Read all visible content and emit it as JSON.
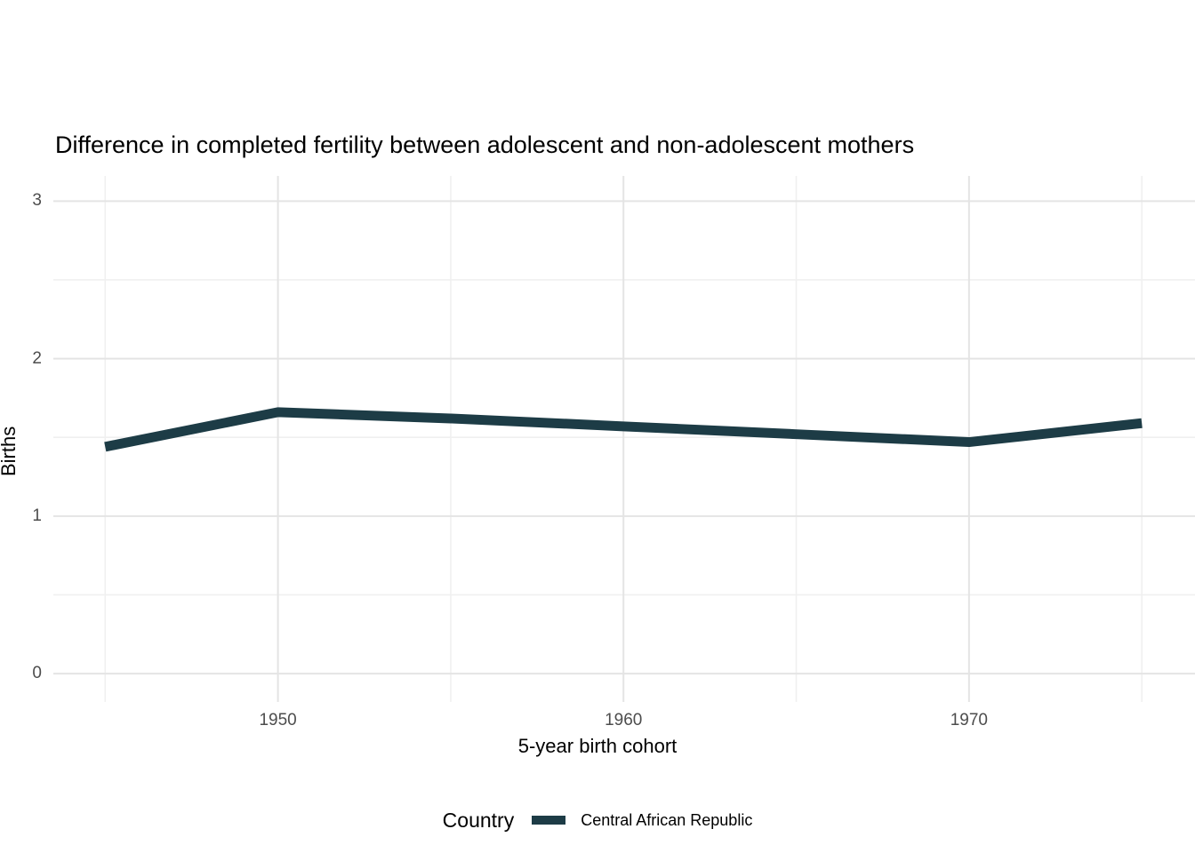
{
  "title": "Difference in completed fertility between adolescent and non-adolescent mothers",
  "chart_data": {
    "type": "line",
    "title": "Difference in completed fertility between adolescent and non-adolescent mothers",
    "xlabel": "5-year birth cohort",
    "ylabel": "Births",
    "x": [
      1945,
      1950,
      1955,
      1960,
      1965,
      1970,
      1975
    ],
    "series": [
      {
        "name": "Central African Republic",
        "color": "#1d3c46",
        "values": [
          1.44,
          1.66,
          1.62,
          1.57,
          1.52,
          1.47,
          1.59
        ]
      }
    ],
    "xlim": [
      1943.5,
      1976.54
    ],
    "ylim": [
      -0.18,
      3.16
    ],
    "x_ticks": [
      {
        "value": 1950,
        "label": "1950"
      },
      {
        "value": 1960,
        "label": "1960"
      },
      {
        "value": 1970,
        "label": "1970"
      }
    ],
    "y_ticks": [
      {
        "value": 0,
        "label": "0"
      },
      {
        "value": 1,
        "label": "1"
      },
      {
        "value": 2,
        "label": "2"
      },
      {
        "value": 3,
        "label": "3"
      }
    ],
    "x_minor": [
      1945,
      1955,
      1965,
      1975
    ],
    "y_minor": [
      0.5,
      1.5,
      2.5
    ],
    "grid": true,
    "legend_position": "bottom",
    "line_width": 11
  },
  "legend": {
    "title": "Country",
    "entries": [
      {
        "label": "Central African Republic",
        "color": "#1d3c46"
      }
    ]
  },
  "colors": {
    "background": "#ffffff",
    "grid_major": "#e4e4e4",
    "grid_minor": "#f0f0f0",
    "axis_text": "#4d4d4d",
    "series_line": "#1d3c46"
  }
}
